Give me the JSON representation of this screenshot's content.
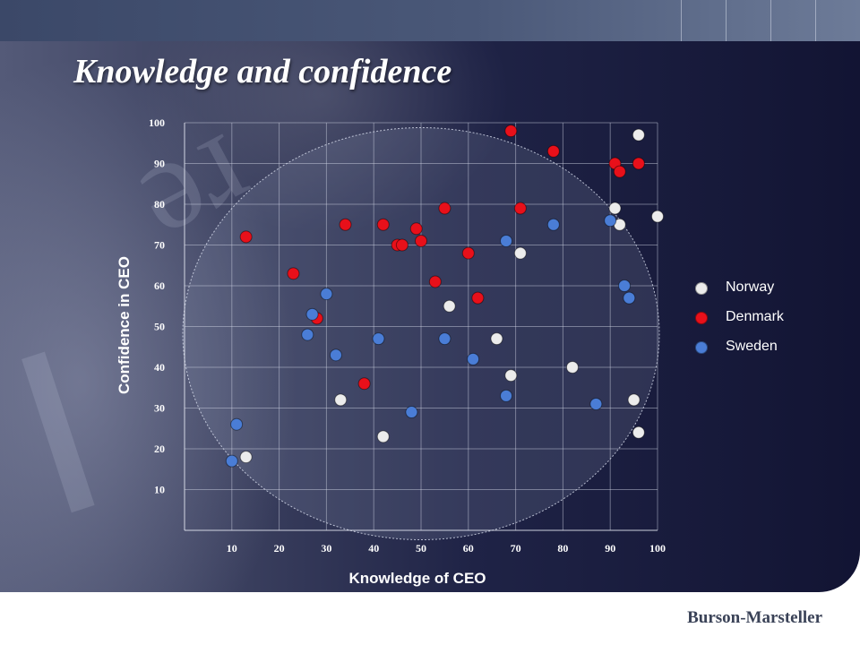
{
  "slide": {
    "title": "Knowledge and confidence",
    "logo": "Burson-Marsteller"
  },
  "chart_data": {
    "type": "scatter",
    "xlabel": "Knowledge of CEO",
    "ylabel": "Confidence in CEO",
    "xlim": [
      0,
      100
    ],
    "ylim": [
      0,
      100
    ],
    "xticks": [
      10,
      20,
      30,
      40,
      50,
      60,
      70,
      80,
      90,
      100
    ],
    "yticks": [
      10,
      20,
      30,
      40,
      50,
      60,
      70,
      80,
      90,
      100
    ],
    "grid": true,
    "legend_position": "right",
    "series": [
      {
        "name": "Norway",
        "color": "#ececec",
        "x": [
          96,
          100,
          91,
          92,
          13,
          33,
          42,
          56,
          66,
          69,
          71,
          82,
          95,
          96
        ],
        "y": [
          97,
          77,
          79,
          75,
          18,
          32,
          23,
          55,
          47,
          38,
          68,
          40,
          32,
          24
        ]
      },
      {
        "name": "Denmark",
        "color": "#e8101a",
        "x": [
          13,
          23,
          28,
          34,
          38,
          42,
          45,
          46,
          49,
          50,
          53,
          55,
          60,
          62,
          69,
          71,
          78,
          91,
          92,
          96
        ],
        "y": [
          72,
          63,
          52,
          75,
          36,
          75,
          70,
          70,
          74,
          71,
          61,
          79,
          68,
          57,
          98,
          79,
          93,
          90,
          88,
          90
        ]
      },
      {
        "name": "Sweden",
        "color": "#4a7dd6",
        "x": [
          10,
          11,
          26,
          27,
          30,
          32,
          41,
          48,
          55,
          61,
          68,
          68,
          78,
          87,
          90,
          93,
          94
        ],
        "y": [
          17,
          26,
          48,
          53,
          58,
          43,
          47,
          29,
          47,
          42,
          71,
          33,
          75,
          31,
          76,
          60,
          57
        ]
      }
    ]
  }
}
